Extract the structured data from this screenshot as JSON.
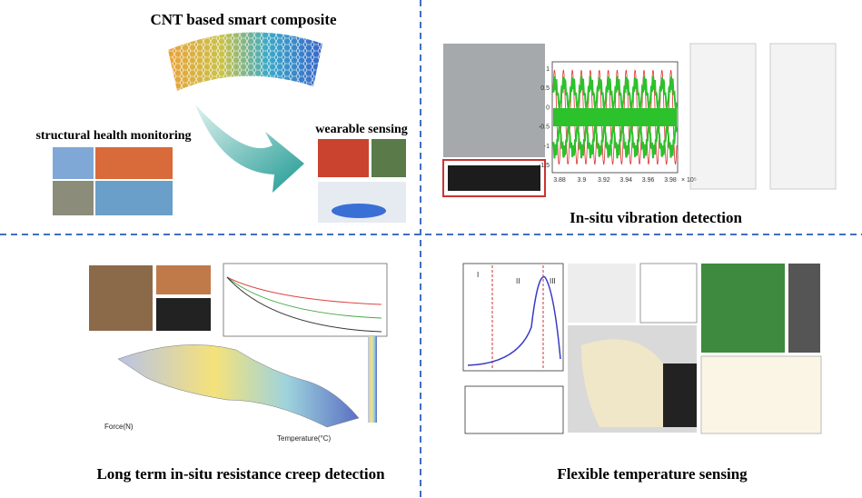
{
  "panels": [
    {
      "title": "CNT based smart composite",
      "labels": [
        "structural health monitoring",
        "wearable sensing"
      ]
    },
    {
      "title": "In-situ vibration detection",
      "plot": {
        "y_ticks": [
          "1",
          "0.5",
          "0",
          "-0.5",
          "-1",
          "-1.5"
        ],
        "x_ticks": [
          "3.88",
          "3.9",
          "3.92",
          "3.94",
          "3.96",
          "3.98"
        ],
        "x_unit": "× 10⁵"
      }
    },
    {
      "title": "Long term in-situ resistance creep detection",
      "plot": {
        "x_label": "Temperature(°C)",
        "y_label": "Force(N)"
      }
    },
    {
      "title": "Flexible temperature sensing",
      "plot": {
        "regions": [
          "I",
          "II",
          "III"
        ]
      }
    }
  ]
}
